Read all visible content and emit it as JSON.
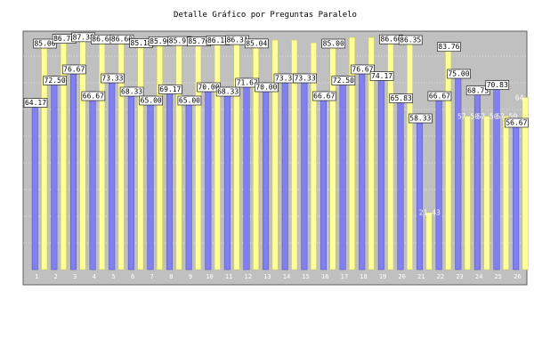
{
  "chart_data": {
    "type": "bar",
    "title": "Detalle Gráfico por Preguntas Paralelo",
    "categories": [
      "1",
      "2",
      "3",
      "4",
      "5",
      "6",
      "7",
      "8",
      "9",
      "10",
      "11",
      "12",
      "13",
      "14",
      "15",
      "16",
      "17",
      "18",
      "19",
      "20",
      "21",
      "22",
      "23",
      "24",
      "25",
      "26"
    ],
    "ylim": [
      0,
      90
    ],
    "yticks": [
      10,
      20,
      30,
      40,
      50,
      60,
      70,
      80
    ],
    "grid": true,
    "colors": {
      "series_a": "#8080f0",
      "series_b": "#ffff99",
      "plot_bg": "#c0c0c0",
      "border": "#606060"
    },
    "series": [
      {
        "values": [
          64.17,
          72.5,
          76.67,
          66.67,
          73.33,
          68.33,
          65.0,
          69.17,
          65.0,
          70.0,
          68.33,
          71.67,
          70.0,
          73.33,
          73.33,
          66.67,
          72.5,
          76.67,
          74.17,
          65.83,
          58.33,
          66.67,
          75.0,
          68.75,
          70.83,
          56.67
        ]
      },
      {
        "values": [
          85.0,
          86.78,
          87.38,
          86.6,
          86.6,
          85.18,
          85.9,
          85.97,
          85.76,
          86.18,
          86.31,
          85.04,
          86.0,
          86.0,
          85.0,
          85.0,
          87.0,
          87.0,
          86.6,
          86.35,
          21.43,
          83.76,
          57.5,
          57.5,
          57.5,
          64.52
        ]
      }
    ],
    "value_labels": [
      {
        "a": "64.17",
        "b": "85.00"
      },
      {
        "a": "72.50",
        "b": "86.78"
      },
      {
        "a": "76.67",
        "b": "87.38"
      },
      {
        "a": "66.67",
        "b": "86.60"
      },
      {
        "a": "73.33",
        "b": "86.60"
      },
      {
        "a": "68.33",
        "b": "85.18"
      },
      {
        "a": "65.00",
        "b": "85.90"
      },
      {
        "a": "69.17",
        "b": "85.97"
      },
      {
        "a": "65.00",
        "b": "85.76"
      },
      {
        "a": "70.00",
        "b": "86.18"
      },
      {
        "a": "68.33",
        "b": "86.31"
      },
      {
        "a": "71.67",
        "b": "85.04"
      },
      {
        "a": "70.00",
        "b": ""
      },
      {
        "a": "73.33",
        "b": ""
      },
      {
        "a": "73.33",
        "b": ""
      },
      {
        "a": "66.67",
        "b": "85.00"
      },
      {
        "a": "72.50",
        "b": ""
      },
      {
        "a": "76.67",
        "b": ""
      },
      {
        "a": "74.17",
        "b": "86.60"
      },
      {
        "a": "65.83",
        "b": "86.35"
      },
      {
        "a": "58.33",
        "b": "21.43"
      },
      {
        "a": "66.67",
        "b": "83.76"
      },
      {
        "a": "75.00",
        "b": "57.50"
      },
      {
        "a": "68.75",
        "b": "57.50"
      },
      {
        "a": "70.83",
        "b": "57.50"
      },
      {
        "a": "56.67",
        "b": "64.52"
      }
    ]
  }
}
